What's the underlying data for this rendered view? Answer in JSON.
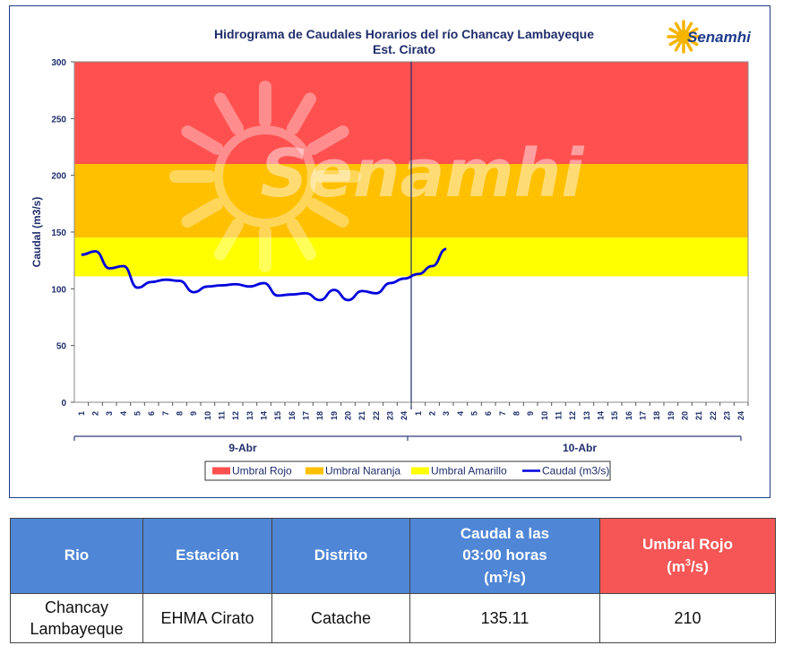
{
  "chart_data": {
    "type": "line",
    "title": "Hidrograma de Caudales Horarios del río Chancay Lambayeque",
    "subtitle": "Est. Cirato",
    "ylabel": "Caudal  (m3/s)",
    "ylim": [
      0,
      300
    ],
    "yticks": [
      "0",
      "50",
      "100",
      "150",
      "200",
      "250",
      "300"
    ],
    "x_tick_labels": [
      "1",
      "2",
      "3",
      "4",
      "5",
      "6",
      "7",
      "8",
      "9",
      "10",
      "11",
      "12",
      "13",
      "14",
      "15",
      "16",
      "17",
      "18",
      "19",
      "20",
      "21",
      "22",
      "23",
      "24"
    ],
    "day_labels": [
      "9-Abr",
      "10-Abr"
    ],
    "grid": false,
    "legend_position": "bottom",
    "thresholds": [
      {
        "name": "Umbral Rojo",
        "from": 210,
        "to": 300,
        "color": "#ff5050"
      },
      {
        "name": "Umbral Naranja",
        "from": 145,
        "to": 210,
        "color": "#ffc000"
      },
      {
        "name": "Umbral Amarillo",
        "from": 111,
        "to": 145,
        "color": "#ffff00"
      }
    ],
    "series": [
      {
        "name": "Caudal (m3/s)",
        "color": "#0000dd",
        "values": [
          130,
          133,
          118,
          120,
          101,
          106,
          108,
          107,
          97,
          102,
          103,
          104,
          102,
          105,
          94,
          95,
          96,
          90,
          99,
          90,
          98,
          96,
          105,
          109,
          113,
          120,
          135.11
        ]
      }
    ]
  },
  "watermark": "Senamhi",
  "logo": {
    "name": "Senamhi"
  },
  "table": {
    "headers": {
      "rio": "Rio",
      "estacion": "Estación",
      "distrito": "Distrito",
      "caudal_line1": "Caudal a las",
      "caudal_line2": "03:00 horas",
      "caudal_unit_pre": "(m",
      "caudal_unit_sup": "3",
      "caudal_unit_post": "/s)",
      "umbral_line1": "Umbral Rojo",
      "umbral_unit_pre": "(m",
      "umbral_unit_sup": "3",
      "umbral_unit_post": "/s)"
    },
    "row": {
      "rio_line1": "Chancay",
      "rio_line2": "Lambayeque",
      "estacion": "EHMA Cirato",
      "distrito": "Catache",
      "caudal": "135.11",
      "umbral": "210"
    }
  },
  "colors": {
    "table_header": "#4f86d6",
    "table_header_red": "#f65656",
    "text_dark": "#1f2d6b"
  }
}
